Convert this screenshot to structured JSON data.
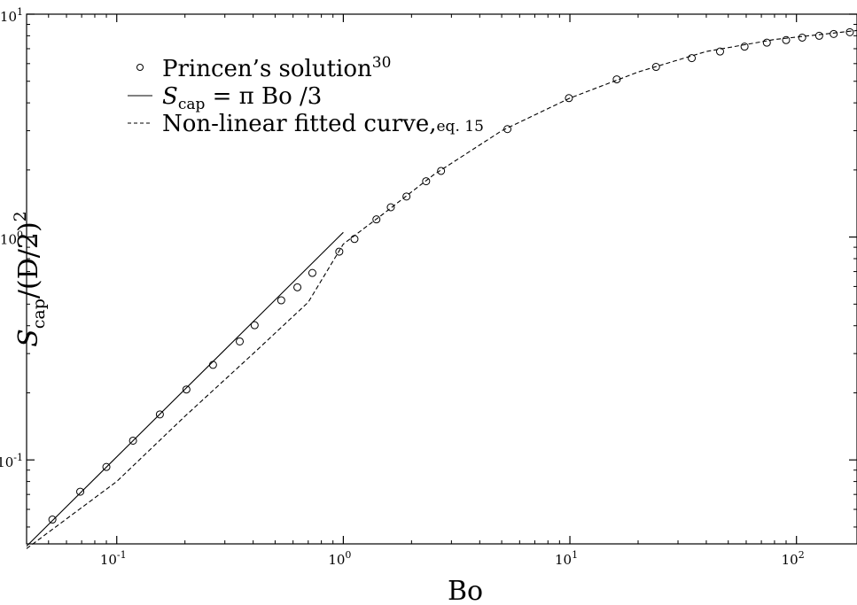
{
  "chart_data": {
    "type": "scatter",
    "xlabel": "Bo",
    "ylabel_parts": {
      "s": "S",
      "sub": "cap",
      "rest": "/(D/2)",
      "sup": "2"
    },
    "xscale": "log",
    "yscale": "log",
    "xlim": [
      0.04,
      185
    ],
    "ylim": [
      0.042,
      10
    ],
    "x_ticks": [
      {
        "base": "10",
        "exp": "-1",
        "value": 0.1
      },
      {
        "base": "10",
        "exp": "0",
        "value": 1
      },
      {
        "base": "10",
        "exp": "1",
        "value": 10
      },
      {
        "base": "10",
        "exp": "2",
        "value": 100
      }
    ],
    "y_ticks": [
      {
        "base": "10",
        "exp": "-1",
        "value": 0.1
      },
      {
        "base": "10",
        "exp": "0",
        "value": 1
      },
      {
        "base": "10",
        "exp": "1",
        "value": 10
      }
    ],
    "legend": {
      "placement": "top-left",
      "entries": [
        {
          "marker": "circle",
          "text": "Princen’s solution",
          "sup": "30"
        },
        {
          "marker": "solid-line",
          "s": "S",
          "sub": "cap",
          "rest": " = π Bo /3"
        },
        {
          "marker": "dashed-line",
          "text": "Non-linear fitted curve,",
          "small": "eq. 15"
        }
      ]
    },
    "series": [
      {
        "name": "Princen’s solution",
        "style": "open-circle",
        "x": [
          0.052,
          0.069,
          0.09,
          0.118,
          0.155,
          0.203,
          0.266,
          0.349,
          0.406,
          0.532,
          0.627,
          0.73,
          0.96,
          1.12,
          1.4,
          1.62,
          1.9,
          2.32,
          2.7,
          5.3,
          9.9,
          16.1,
          24,
          34.5,
          46,
          59,
          74,
          90,
          106,
          126,
          146,
          172
        ],
        "y": [
          0.054,
          0.072,
          0.093,
          0.122,
          0.16,
          0.207,
          0.267,
          0.34,
          0.402,
          0.52,
          0.595,
          0.69,
          0.86,
          0.98,
          1.2,
          1.36,
          1.52,
          1.78,
          1.98,
          3.05,
          4.2,
          5.1,
          5.8,
          6.35,
          6.8,
          7.15,
          7.45,
          7.65,
          7.85,
          8.0,
          8.15,
          8.3
        ]
      },
      {
        "name": "S_cap = π Bo /3",
        "style": "solid",
        "x": [
          0.04,
          1.0
        ],
        "y": [
          0.041,
          1.05
        ]
      },
      {
        "name": "Non-linear fitted curve",
        "style": "dashed",
        "x": [
          0.04,
          0.1,
          0.2,
          0.4,
          0.7,
          1.0,
          1.5,
          2.5,
          5,
          10,
          20,
          40,
          80,
          120,
          185
        ],
        "y": [
          0.04,
          0.08,
          0.157,
          0.3,
          0.51,
          0.93,
          1.27,
          1.9,
          3.0,
          4.2,
          5.5,
          6.8,
          7.7,
          8.05,
          8.45
        ]
      }
    ]
  }
}
